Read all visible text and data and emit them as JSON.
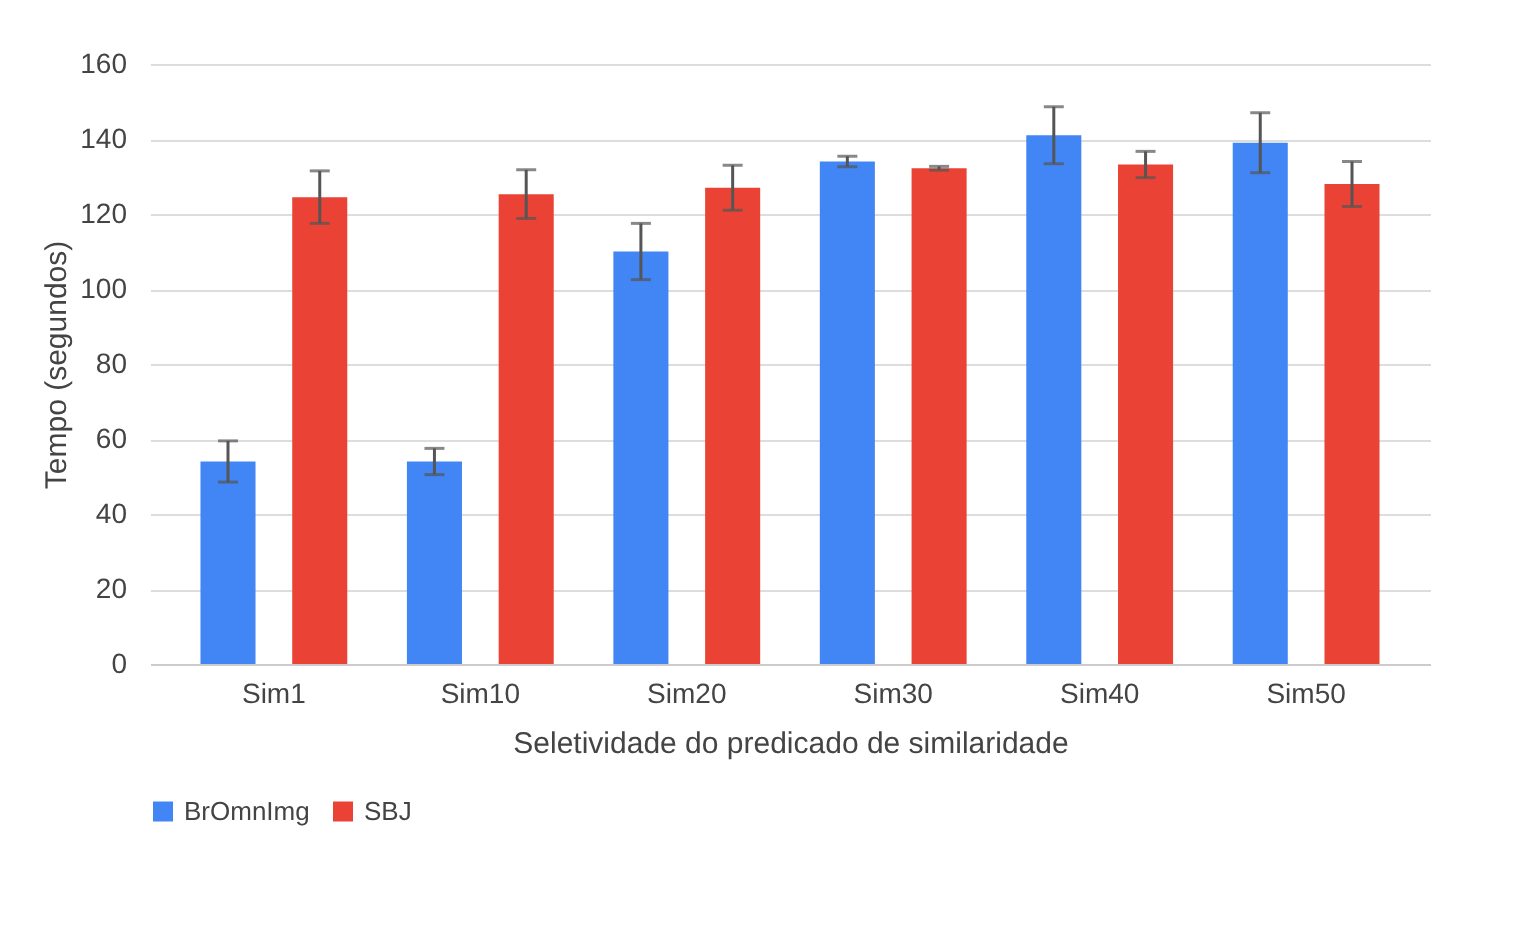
{
  "chart_data": {
    "type": "bar",
    "xlabel": "Seletividade do predicado de similaridade",
    "ylabel": "Tempo (segundos)",
    "categories": [
      "Sim1",
      "Sim10",
      "Sim20",
      "Sim30",
      "Sim40",
      "Sim50"
    ],
    "series": [
      {
        "name": "BrOmnImg",
        "color": "#4285f4",
        "values": [
          54,
          54,
          110,
          134,
          141,
          139
        ],
        "errors": [
          5.5,
          3.5,
          7.5,
          1.4,
          7.6,
          8
        ]
      },
      {
        "name": "SBJ",
        "color": "#ea4335",
        "values": [
          124.5,
          125.3,
          127,
          132.2,
          133.2,
          128
        ],
        "errors": [
          7,
          6.5,
          6,
          0.5,
          3.5,
          6
        ]
      }
    ],
    "ylim": [
      0,
      160
    ],
    "yticks": [
      0,
      20,
      40,
      60,
      80,
      100,
      120,
      140,
      160
    ],
    "grid": "y",
    "legend": "bottom"
  }
}
